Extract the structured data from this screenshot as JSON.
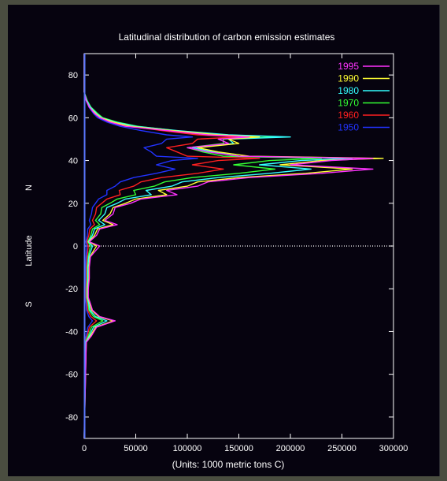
{
  "chart_data": {
    "type": "line",
    "orientation": "horizontal",
    "title": "Latitudinal distribution of carbon emission estimates",
    "xlabel": "(Units: 1000 metric tons C)",
    "ylabel": "Latitude",
    "hemisphere_labels": {
      "north": "N",
      "south": "S"
    },
    "xlim": [
      0,
      300000
    ],
    "ylim": [
      -90,
      90
    ],
    "x_ticks": [
      0,
      50000,
      100000,
      150000,
      200000,
      250000,
      300000
    ],
    "y_ticks": [
      -80,
      -60,
      -40,
      -20,
      0,
      20,
      40,
      60,
      80
    ],
    "equator_line": {
      "y": 0,
      "style": "dotted"
    },
    "grid": false,
    "legend_position": "top-right",
    "latitude": [
      -90,
      -45,
      -42,
      -38,
      -35,
      -33,
      -30,
      -27,
      -24,
      -20,
      -15,
      -10,
      -5,
      0,
      2,
      5,
      8,
      10,
      12,
      15,
      18,
      20,
      22,
      24,
      26,
      28,
      30,
      32,
      34,
      36,
      38,
      40,
      41,
      42,
      44,
      46,
      48,
      50,
      51,
      52,
      54,
      56,
      58,
      60,
      62,
      65,
      68,
      72,
      90
    ],
    "series": [
      {
        "name": "1995",
        "color": "#ff33ff",
        "values": [
          0,
          2000,
          7000,
          12000,
          30000,
          15000,
          8000,
          6000,
          4000,
          4000,
          5000,
          5000,
          6000,
          15000,
          5000,
          12000,
          15000,
          32000,
          20000,
          28000,
          30000,
          45000,
          55000,
          90000,
          80000,
          110000,
          120000,
          160000,
          230000,
          280000,
          200000,
          240000,
          280000,
          150000,
          120000,
          100000,
          140000,
          130000,
          160000,
          120000,
          80000,
          40000,
          25000,
          15000,
          10000,
          5000,
          2000,
          0,
          0
        ]
      },
      {
        "name": "1990",
        "color": "#ffff33",
        "values": [
          0,
          2000,
          6000,
          11000,
          28000,
          14000,
          7000,
          5500,
          3500,
          3500,
          4500,
          4500,
          5500,
          12000,
          4500,
          10000,
          13000,
          28000,
          18000,
          25000,
          28000,
          40000,
          50000,
          80000,
          72000,
          100000,
          110000,
          150000,
          215000,
          260000,
          190000,
          230000,
          290000,
          160000,
          130000,
          110000,
          150000,
          140000,
          170000,
          130000,
          85000,
          45000,
          28000,
          16000,
          11000,
          5000,
          2000,
          0,
          0
        ]
      },
      {
        "name": "1980",
        "color": "#33ffff",
        "values": [
          0,
          1500,
          5000,
          9000,
          22000,
          11000,
          5500,
          4500,
          3000,
          3000,
          3500,
          3500,
          4500,
          8000,
          4000,
          8000,
          10000,
          20000,
          14000,
          20000,
          22000,
          32000,
          40000,
          65000,
          60000,
          85000,
          95000,
          130000,
          180000,
          220000,
          170000,
          210000,
          260000,
          150000,
          125000,
          105000,
          145000,
          140000,
          200000,
          140000,
          90000,
          50000,
          30000,
          17000,
          12000,
          6000,
          2500,
          0,
          0
        ]
      },
      {
        "name": "1970",
        "color": "#33ff33",
        "values": [
          0,
          1200,
          4000,
          7000,
          18000,
          9000,
          4500,
          3800,
          2500,
          2500,
          3000,
          3000,
          3800,
          6000,
          3500,
          6500,
          8000,
          15000,
          11000,
          16000,
          17000,
          25000,
          32000,
          50000,
          48000,
          68000,
          78000,
          105000,
          150000,
          185000,
          145000,
          180000,
          230000,
          135000,
          115000,
          100000,
          135000,
          135000,
          190000,
          135000,
          88000,
          52000,
          32000,
          18000,
          13000,
          6500,
          3000,
          0,
          0
        ]
      },
      {
        "name": "1960",
        "color": "#ff2020",
        "values": [
          0,
          900,
          3000,
          5000,
          12000,
          6500,
          3200,
          2800,
          1800,
          1800,
          2200,
          2200,
          2800,
          4000,
          2500,
          4500,
          5500,
          10000,
          8000,
          11000,
          12000,
          17000,
          22000,
          35000,
          34000,
          48000,
          55000,
          75000,
          110000,
          135000,
          105000,
          130000,
          170000,
          100000,
          90000,
          80000,
          105000,
          110000,
          150000,
          110000,
          75000,
          45000,
          28000,
          16000,
          11000,
          5500,
          2500,
          0,
          0
        ]
      },
      {
        "name": "1950",
        "color": "#2233ff",
        "values": [
          0,
          600,
          2000,
          3500,
          8000,
          4500,
          2200,
          1900,
          1200,
          1200,
          1500,
          1500,
          1900,
          2500,
          1700,
          3000,
          3500,
          6500,
          5000,
          7000,
          8000,
          11000,
          14000,
          22000,
          22000,
          30000,
          35000,
          48000,
          70000,
          88000,
          70000,
          85000,
          110000,
          70000,
          65000,
          58000,
          75000,
          80000,
          105000,
          80000,
          55000,
          35000,
          22000,
          13000,
          9000,
          4500,
          2000,
          0,
          0
        ]
      }
    ]
  }
}
